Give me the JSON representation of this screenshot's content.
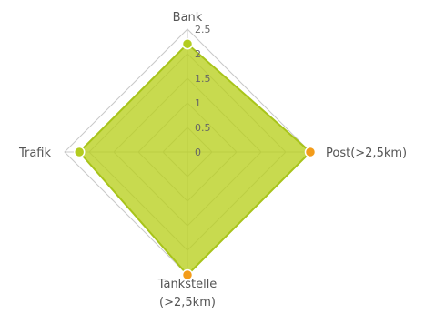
{
  "chart_data": {
    "type": "radar",
    "axes": [
      {
        "label": "Bank",
        "lines": [
          "Bank"
        ],
        "value": 2.2
      },
      {
        "label": "Post(>2,5km)",
        "lines": [
          "Post(>2,5km)"
        ],
        "value": 2.5
      },
      {
        "label": "Tankstelle (>2,5km)",
        "lines": [
          "Tankstelle",
          "(>2,5km)"
        ],
        "value": 2.5
      },
      {
        "label": "Trafik",
        "lines": [
          "Trafik"
        ],
        "value": 2.2
      }
    ],
    "ticks": [
      "0",
      "0.5",
      "1",
      "1.5",
      "2",
      "2.5"
    ],
    "tick_values": [
      0,
      0.5,
      1,
      1.5,
      2,
      2.5
    ],
    "rmax": 2.5,
    "colors": {
      "fill": "#b9cf1e",
      "stroke": "#a8c41a",
      "grid": "#c8c8c8",
      "point": "#b3cc1f",
      "point_highlight": "#f39c1a"
    },
    "highlighted_points": [
      1,
      2
    ]
  }
}
